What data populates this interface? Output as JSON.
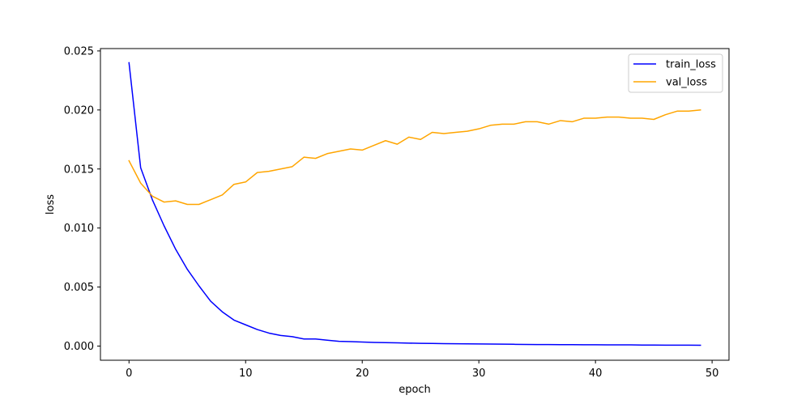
{
  "chart_data": {
    "type": "line",
    "title": "",
    "xlabel": "epoch",
    "ylabel": "loss",
    "xlim": [
      -2.45,
      51.45
    ],
    "ylim": [
      -0.0012,
      0.0252
    ],
    "x_ticks": [
      0,
      10,
      20,
      30,
      40,
      50
    ],
    "y_ticks": [
      0.0,
      0.005,
      0.01,
      0.015,
      0.02,
      0.025
    ],
    "x_tick_labels": [
      "0",
      "10",
      "20",
      "30",
      "40",
      "50"
    ],
    "y_tick_labels": [
      "0.000",
      "0.005",
      "0.010",
      "0.015",
      "0.020",
      "0.025"
    ],
    "grid": false,
    "legend_position": "top-right",
    "x": [
      0,
      1,
      2,
      3,
      4,
      5,
      6,
      7,
      8,
      9,
      10,
      11,
      12,
      13,
      14,
      15,
      16,
      17,
      18,
      19,
      20,
      21,
      22,
      23,
      24,
      25,
      26,
      27,
      28,
      29,
      30,
      31,
      32,
      33,
      34,
      35,
      36,
      37,
      38,
      39,
      40,
      41,
      42,
      43,
      44,
      45,
      46,
      47,
      48,
      49
    ],
    "series": [
      {
        "name": "train_loss",
        "color": "#0000ff",
        "values": [
          0.024,
          0.0151,
          0.0124,
          0.0102,
          0.0082,
          0.0065,
          0.0051,
          0.0038,
          0.0029,
          0.0022,
          0.0018,
          0.0014,
          0.0011,
          0.0009,
          0.0008,
          0.0006,
          0.0006,
          0.0005,
          0.0004,
          0.00038,
          0.00034,
          0.00031,
          0.00029,
          0.00027,
          0.00025,
          0.00023,
          0.00022,
          0.00021,
          0.0002,
          0.00019,
          0.00018,
          0.00017,
          0.00016,
          0.00015,
          0.00014,
          0.00013,
          0.00013,
          0.00012,
          0.00012,
          0.00011,
          0.00011,
          0.0001,
          0.0001,
          0.0001,
          9e-05,
          9e-05,
          8e-05,
          8e-05,
          8e-05,
          7e-05
        ]
      },
      {
        "name": "val_loss",
        "color": "#ffa500",
        "values": [
          0.0157,
          0.0138,
          0.0127,
          0.0122,
          0.0123,
          0.012,
          0.012,
          0.0124,
          0.0128,
          0.0137,
          0.0139,
          0.0147,
          0.0148,
          0.015,
          0.0152,
          0.016,
          0.0159,
          0.0163,
          0.0165,
          0.0167,
          0.0166,
          0.017,
          0.0174,
          0.0171,
          0.0177,
          0.0175,
          0.0181,
          0.018,
          0.0181,
          0.0182,
          0.0184,
          0.0187,
          0.0188,
          0.0188,
          0.019,
          0.019,
          0.0188,
          0.0191,
          0.019,
          0.0193,
          0.0193,
          0.0194,
          0.0194,
          0.0193,
          0.0193,
          0.0192,
          0.0196,
          0.0199,
          0.0199,
          0.02
        ]
      }
    ]
  }
}
